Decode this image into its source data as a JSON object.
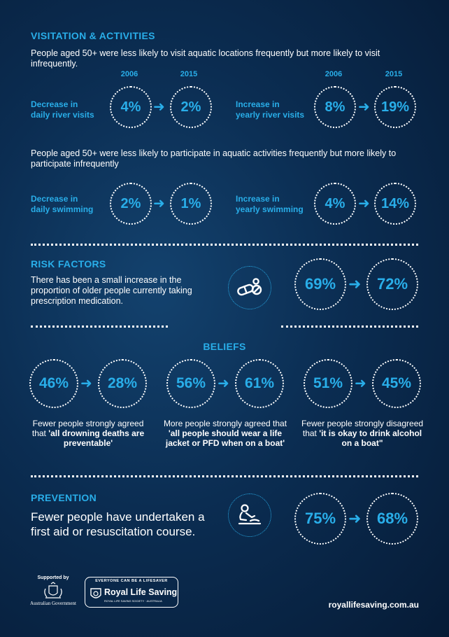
{
  "visitation": {
    "heading": "VISITATION & ACTIVITIES",
    "intro1": "People aged 50+ were less likely to visit aquatic locations frequently but more likely to visit infrequently.",
    "year_a": "2006",
    "year_b": "2015",
    "river": {
      "label_line1": "Decrease in",
      "label_line2": "daily river visits",
      "from": "4%",
      "to": "2%"
    },
    "yearly_river": {
      "label_line1": "Increase in",
      "label_line2": "yearly river visits",
      "from": "8%",
      "to": "19%"
    },
    "intro2": "People aged 50+ were less likely to participate in aquatic activities frequently but more likely to participate infrequently",
    "swim": {
      "label_line1": "Decrease in",
      "label_line2": "daily swimming",
      "from": "2%",
      "to": "1%"
    },
    "yearly_swim": {
      "label_line1": "Increase in",
      "label_line2": "yearly swimming",
      "from": "4%",
      "to": "14%"
    }
  },
  "risk": {
    "heading": "RISK FACTORS",
    "text": "There has been a small increase in the proportion of older people currently taking prescription medication.",
    "icon": "pills-icon",
    "from": "69%",
    "to": "72%"
  },
  "beliefs": {
    "heading": "BELIEFS",
    "items": [
      {
        "from": "46%",
        "to": "28%",
        "caption_plain": "Fewer people strongly agreed that ",
        "caption_bold": "'all drowning deaths are preventable'"
      },
      {
        "from": "56%",
        "to": "61%",
        "caption_plain": "More people strongly agreed that ",
        "caption_bold": "'all people should wear a life jacket or PFD when on a boat'"
      },
      {
        "from": "51%",
        "to": "45%",
        "caption_plain": "Fewer people strongly disagreed that ",
        "caption_bold": "'it is okay to drink alcohol on a boat\""
      }
    ]
  },
  "prevention": {
    "heading": "PREVENTION",
    "text": "Fewer people have undertaken a first aid or resuscitation course.",
    "icon": "cpr-icon",
    "from": "75%",
    "to": "68%"
  },
  "footer": {
    "supported_by": "Supported by",
    "gov": "Australian Government",
    "rls_banner": "EVERYONE CAN BE A LIFESAVER",
    "rls_name": "Royal Life Saving",
    "rls_sub": "ROYAL LIFE SAVING SOCIETY · AUSTRALIA",
    "url": "royallifesaving.com.au"
  },
  "colors": {
    "accent": "#29aee9",
    "background": "#0b2d52",
    "text": "#ffffff"
  },
  "arrow_glyph": "➜"
}
